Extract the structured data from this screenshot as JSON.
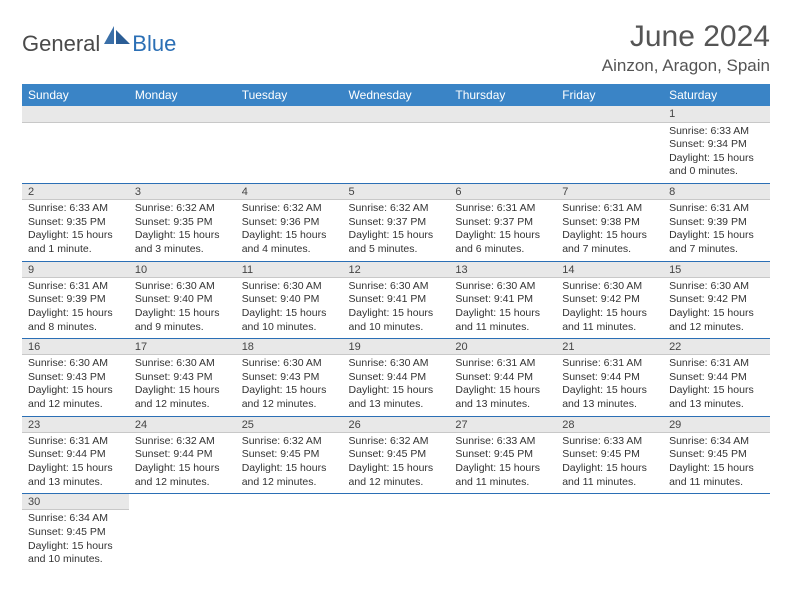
{
  "logo": {
    "part1": "General",
    "part2": "Blue"
  },
  "header": {
    "title": "June 2024",
    "location": "Ainzon, Aragon, Spain"
  },
  "colors": {
    "header_bg": "#3a84c6",
    "header_fg": "#ffffff",
    "daynum_bg": "#e8e8e8",
    "cell_border": "#2b6fb5",
    "logo_dark": "#4a4a4a",
    "logo_blue": "#2b6fb5",
    "text": "#333333"
  },
  "typography": {
    "title_fontsize": 30,
    "location_fontsize": 17,
    "weekday_fontsize": 12,
    "body_fontsize": 10.5
  },
  "weekdays": [
    "Sunday",
    "Monday",
    "Tuesday",
    "Wednesday",
    "Thursday",
    "Friday",
    "Saturday"
  ],
  "weeks": [
    [
      null,
      null,
      null,
      null,
      null,
      null,
      {
        "n": "1",
        "sr": "Sunrise: 6:33 AM",
        "ss": "Sunset: 9:34 PM",
        "d1": "Daylight: 15 hours",
        "d2": "and 0 minutes."
      }
    ],
    [
      {
        "n": "2",
        "sr": "Sunrise: 6:33 AM",
        "ss": "Sunset: 9:35 PM",
        "d1": "Daylight: 15 hours",
        "d2": "and 1 minute."
      },
      {
        "n": "3",
        "sr": "Sunrise: 6:32 AM",
        "ss": "Sunset: 9:35 PM",
        "d1": "Daylight: 15 hours",
        "d2": "and 3 minutes."
      },
      {
        "n": "4",
        "sr": "Sunrise: 6:32 AM",
        "ss": "Sunset: 9:36 PM",
        "d1": "Daylight: 15 hours",
        "d2": "and 4 minutes."
      },
      {
        "n": "5",
        "sr": "Sunrise: 6:32 AM",
        "ss": "Sunset: 9:37 PM",
        "d1": "Daylight: 15 hours",
        "d2": "and 5 minutes."
      },
      {
        "n": "6",
        "sr": "Sunrise: 6:31 AM",
        "ss": "Sunset: 9:37 PM",
        "d1": "Daylight: 15 hours",
        "d2": "and 6 minutes."
      },
      {
        "n": "7",
        "sr": "Sunrise: 6:31 AM",
        "ss": "Sunset: 9:38 PM",
        "d1": "Daylight: 15 hours",
        "d2": "and 7 minutes."
      },
      {
        "n": "8",
        "sr": "Sunrise: 6:31 AM",
        "ss": "Sunset: 9:39 PM",
        "d1": "Daylight: 15 hours",
        "d2": "and 7 minutes."
      }
    ],
    [
      {
        "n": "9",
        "sr": "Sunrise: 6:31 AM",
        "ss": "Sunset: 9:39 PM",
        "d1": "Daylight: 15 hours",
        "d2": "and 8 minutes."
      },
      {
        "n": "10",
        "sr": "Sunrise: 6:30 AM",
        "ss": "Sunset: 9:40 PM",
        "d1": "Daylight: 15 hours",
        "d2": "and 9 minutes."
      },
      {
        "n": "11",
        "sr": "Sunrise: 6:30 AM",
        "ss": "Sunset: 9:40 PM",
        "d1": "Daylight: 15 hours",
        "d2": "and 10 minutes."
      },
      {
        "n": "12",
        "sr": "Sunrise: 6:30 AM",
        "ss": "Sunset: 9:41 PM",
        "d1": "Daylight: 15 hours",
        "d2": "and 10 minutes."
      },
      {
        "n": "13",
        "sr": "Sunrise: 6:30 AM",
        "ss": "Sunset: 9:41 PM",
        "d1": "Daylight: 15 hours",
        "d2": "and 11 minutes."
      },
      {
        "n": "14",
        "sr": "Sunrise: 6:30 AM",
        "ss": "Sunset: 9:42 PM",
        "d1": "Daylight: 15 hours",
        "d2": "and 11 minutes."
      },
      {
        "n": "15",
        "sr": "Sunrise: 6:30 AM",
        "ss": "Sunset: 9:42 PM",
        "d1": "Daylight: 15 hours",
        "d2": "and 12 minutes."
      }
    ],
    [
      {
        "n": "16",
        "sr": "Sunrise: 6:30 AM",
        "ss": "Sunset: 9:43 PM",
        "d1": "Daylight: 15 hours",
        "d2": "and 12 minutes."
      },
      {
        "n": "17",
        "sr": "Sunrise: 6:30 AM",
        "ss": "Sunset: 9:43 PM",
        "d1": "Daylight: 15 hours",
        "d2": "and 12 minutes."
      },
      {
        "n": "18",
        "sr": "Sunrise: 6:30 AM",
        "ss": "Sunset: 9:43 PM",
        "d1": "Daylight: 15 hours",
        "d2": "and 12 minutes."
      },
      {
        "n": "19",
        "sr": "Sunrise: 6:30 AM",
        "ss": "Sunset: 9:44 PM",
        "d1": "Daylight: 15 hours",
        "d2": "and 13 minutes."
      },
      {
        "n": "20",
        "sr": "Sunrise: 6:31 AM",
        "ss": "Sunset: 9:44 PM",
        "d1": "Daylight: 15 hours",
        "d2": "and 13 minutes."
      },
      {
        "n": "21",
        "sr": "Sunrise: 6:31 AM",
        "ss": "Sunset: 9:44 PM",
        "d1": "Daylight: 15 hours",
        "d2": "and 13 minutes."
      },
      {
        "n": "22",
        "sr": "Sunrise: 6:31 AM",
        "ss": "Sunset: 9:44 PM",
        "d1": "Daylight: 15 hours",
        "d2": "and 13 minutes."
      }
    ],
    [
      {
        "n": "23",
        "sr": "Sunrise: 6:31 AM",
        "ss": "Sunset: 9:44 PM",
        "d1": "Daylight: 15 hours",
        "d2": "and 13 minutes."
      },
      {
        "n": "24",
        "sr": "Sunrise: 6:32 AM",
        "ss": "Sunset: 9:44 PM",
        "d1": "Daylight: 15 hours",
        "d2": "and 12 minutes."
      },
      {
        "n": "25",
        "sr": "Sunrise: 6:32 AM",
        "ss": "Sunset: 9:45 PM",
        "d1": "Daylight: 15 hours",
        "d2": "and 12 minutes."
      },
      {
        "n": "26",
        "sr": "Sunrise: 6:32 AM",
        "ss": "Sunset: 9:45 PM",
        "d1": "Daylight: 15 hours",
        "d2": "and 12 minutes."
      },
      {
        "n": "27",
        "sr": "Sunrise: 6:33 AM",
        "ss": "Sunset: 9:45 PM",
        "d1": "Daylight: 15 hours",
        "d2": "and 11 minutes."
      },
      {
        "n": "28",
        "sr": "Sunrise: 6:33 AM",
        "ss": "Sunset: 9:45 PM",
        "d1": "Daylight: 15 hours",
        "d2": "and 11 minutes."
      },
      {
        "n": "29",
        "sr": "Sunrise: 6:34 AM",
        "ss": "Sunset: 9:45 PM",
        "d1": "Daylight: 15 hours",
        "d2": "and 11 minutes."
      }
    ],
    [
      {
        "n": "30",
        "sr": "Sunrise: 6:34 AM",
        "ss": "Sunset: 9:45 PM",
        "d1": "Daylight: 15 hours",
        "d2": "and 10 minutes."
      },
      null,
      null,
      null,
      null,
      null,
      null
    ]
  ]
}
